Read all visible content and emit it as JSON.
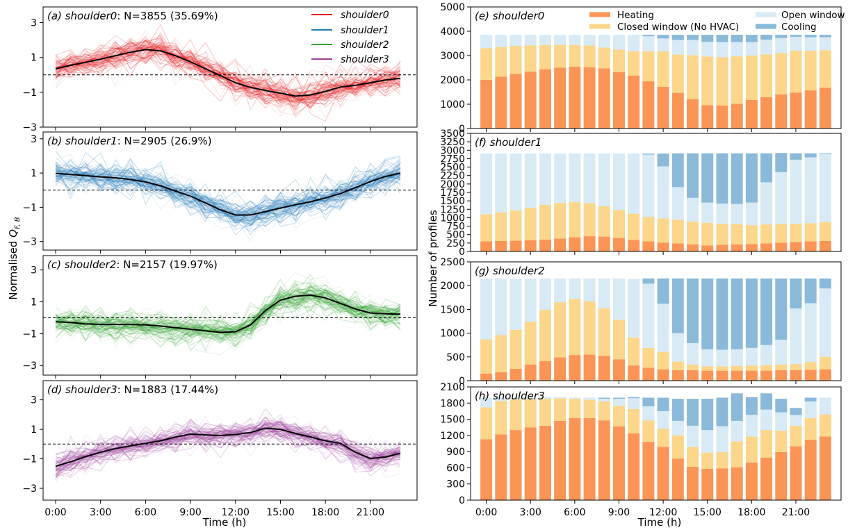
{
  "figure": {
    "left_ylabel": "Normalised",
    "left_ylabel_symbol": "Q",
    "left_ylabel_sub": "F, B",
    "left_xlabel": "Time (h)",
    "right_ylabel": "Number of profiles",
    "right_xlabel": "Time (h)"
  },
  "left_legend": [
    {
      "label": "shoulder0",
      "color": "#e41a1c"
    },
    {
      "label": "shoulder1",
      "color": "#1f77b4"
    },
    {
      "label": "shoulder2",
      "color": "#2ca02c"
    },
    {
      "label": "shoulder3",
      "color": "#9b409b"
    }
  ],
  "right_legend": [
    {
      "label": "Heating",
      "color": "#fa9556"
    },
    {
      "label": "Open window",
      "color": "#d8eaf6"
    },
    {
      "label": "Closed window (No HVAC)",
      "color": "#fcd68a"
    },
    {
      "label": "Cooling",
      "color": "#8ab9d9"
    }
  ],
  "chart_data": [
    {
      "type": "line",
      "panel": "a",
      "title_label": "(a) shoulder0",
      "title_stats": ": N=3855 (35.69%)",
      "color": "#e41a1c",
      "x": [
        "0:00",
        "1:00",
        "2:00",
        "3:00",
        "4:00",
        "5:00",
        "6:00",
        "7:00",
        "8:00",
        "9:00",
        "10:00",
        "11:00",
        "12:00",
        "13:00",
        "14:00",
        "15:00",
        "16:00",
        "17:00",
        "18:00",
        "19:00",
        "20:00",
        "21:00",
        "22:00",
        "23:00"
      ],
      "y": [
        0.35,
        0.55,
        0.72,
        0.9,
        1.1,
        1.3,
        1.45,
        1.38,
        1.1,
        0.75,
        0.35,
        -0.05,
        -0.45,
        -0.72,
        -0.9,
        -1.05,
        -1.22,
        -1.15,
        -0.95,
        -0.7,
        -0.6,
        -0.45,
        -0.3,
        -0.2
      ],
      "ylim": [
        -3,
        3.9
      ],
      "yticks": [
        -3,
        -1,
        1,
        3
      ],
      "baseline": 0
    },
    {
      "type": "line",
      "panel": "b",
      "title_label": "(b) shoulder1",
      "title_stats": ": N=2905 (26.9%)",
      "color": "#1f77b4",
      "x": [
        "0:00",
        "1:00",
        "2:00",
        "3:00",
        "4:00",
        "5:00",
        "6:00",
        "7:00",
        "8:00",
        "9:00",
        "10:00",
        "11:00",
        "12:00",
        "13:00",
        "14:00",
        "15:00",
        "16:00",
        "17:00",
        "18:00",
        "19:00",
        "20:00",
        "21:00",
        "22:00",
        "23:00"
      ],
      "y": [
        0.98,
        0.92,
        0.85,
        0.78,
        0.72,
        0.62,
        0.48,
        0.25,
        -0.05,
        -0.35,
        -0.75,
        -1.15,
        -1.45,
        -1.45,
        -1.25,
        -1.05,
        -0.85,
        -0.68,
        -0.45,
        -0.2,
        0.15,
        0.5,
        0.8,
        1.0
      ],
      "ylim": [
        -3.5,
        3.4
      ],
      "yticks": [
        -3,
        -1,
        1,
        3
      ],
      "baseline": 0
    },
    {
      "type": "line",
      "panel": "c",
      "title_label": "(c) shoulder2",
      "title_stats": ": N=2157 (19.97%)",
      "color": "#2ca02c",
      "x": [
        "0:00",
        "1:00",
        "2:00",
        "3:00",
        "4:00",
        "5:00",
        "6:00",
        "7:00",
        "8:00",
        "9:00",
        "10:00",
        "11:00",
        "12:00",
        "13:00",
        "14:00",
        "15:00",
        "16:00",
        "17:00",
        "18:00",
        "19:00",
        "20:00",
        "21:00",
        "22:00",
        "23:00"
      ],
      "y": [
        -0.25,
        -0.3,
        -0.38,
        -0.42,
        -0.42,
        -0.42,
        -0.45,
        -0.52,
        -0.62,
        -0.72,
        -0.82,
        -0.92,
        -0.88,
        -0.45,
        0.45,
        1.1,
        1.35,
        1.42,
        1.25,
        0.9,
        0.55,
        0.3,
        0.25,
        0.22
      ],
      "ylim": [
        -3.6,
        3.9
      ],
      "yticks": [
        -3,
        -1,
        1,
        3
      ],
      "baseline": 0
    },
    {
      "type": "line",
      "panel": "d",
      "title_label": "(d) shoulder3",
      "title_stats": ": N=1883 (17.44%)",
      "color": "#9b409b",
      "x": [
        "0:00",
        "1:00",
        "2:00",
        "3:00",
        "4:00",
        "5:00",
        "6:00",
        "7:00",
        "8:00",
        "9:00",
        "10:00",
        "11:00",
        "12:00",
        "13:00",
        "14:00",
        "15:00",
        "16:00",
        "17:00",
        "18:00",
        "19:00",
        "20:00",
        "21:00",
        "22:00",
        "23:00"
      ],
      "y": [
        -1.5,
        -1.2,
        -0.85,
        -0.55,
        -0.3,
        -0.12,
        0.05,
        0.22,
        0.48,
        0.68,
        0.62,
        0.58,
        0.65,
        0.78,
        1.08,
        1.0,
        0.72,
        0.48,
        0.22,
        0.05,
        -0.55,
        -0.98,
        -0.88,
        -0.62
      ],
      "ylim": [
        -3.8,
        4.3
      ],
      "yticks": [
        -3,
        -1,
        1,
        3
      ],
      "baseline": 0
    },
    {
      "type": "bar",
      "stacked": true,
      "panel": "e",
      "title": "(e) shoulder0",
      "categories": [
        "0:00",
        "1:00",
        "2:00",
        "3:00",
        "4:00",
        "5:00",
        "6:00",
        "7:00",
        "8:00",
        "9:00",
        "10:00",
        "11:00",
        "12:00",
        "13:00",
        "14:00",
        "15:00",
        "16:00",
        "17:00",
        "18:00",
        "19:00",
        "20:00",
        "21:00",
        "22:00",
        "23:00"
      ],
      "series": [
        {
          "name": "Heating",
          "values": [
            2000,
            2130,
            2250,
            2340,
            2440,
            2500,
            2540,
            2520,
            2470,
            2320,
            2180,
            1940,
            1720,
            1470,
            1200,
            960,
            950,
            1020,
            1180,
            1290,
            1400,
            1480,
            1570,
            1680
          ]
        },
        {
          "name": "Closed window (No HVAC)",
          "values": [
            1300,
            1220,
            1150,
            1080,
            990,
            940,
            900,
            900,
            860,
            930,
            1000,
            1240,
            1450,
            1570,
            1820,
            2000,
            1980,
            1950,
            1820,
            1760,
            1700,
            1720,
            1630,
            1540
          ]
        },
        {
          "name": "Open window",
          "values": [
            555,
            505,
            455,
            435,
            425,
            415,
            415,
            435,
            525,
            605,
            675,
            615,
            535,
            605,
            625,
            605,
            625,
            585,
            555,
            605,
            625,
            575,
            555,
            535
          ]
        },
        {
          "name": "Cooling",
          "values": [
            0,
            0,
            0,
            0,
            0,
            0,
            0,
            0,
            0,
            0,
            0,
            60,
            150,
            210,
            210,
            290,
            300,
            300,
            300,
            200,
            130,
            80,
            100,
            100
          ]
        }
      ],
      "ylim": [
        0,
        5000
      ],
      "yticks": [
        0,
        1000,
        2000,
        3000,
        4000,
        5000
      ]
    },
    {
      "type": "bar",
      "stacked": true,
      "panel": "f",
      "title": "(f) shoulder1",
      "categories": [
        "0:00",
        "1:00",
        "2:00",
        "3:00",
        "4:00",
        "5:00",
        "6:00",
        "7:00",
        "8:00",
        "9:00",
        "10:00",
        "11:00",
        "12:00",
        "13:00",
        "14:00",
        "15:00",
        "16:00",
        "17:00",
        "18:00",
        "19:00",
        "20:00",
        "21:00",
        "22:00",
        "23:00"
      ],
      "series": [
        {
          "name": "Heating",
          "values": [
            300,
            310,
            320,
            330,
            350,
            380,
            420,
            450,
            440,
            400,
            340,
            300,
            260,
            240,
            210,
            180,
            200,
            210,
            220,
            240,
            260,
            280,
            300,
            310
          ]
        },
        {
          "name": "Closed window (No HVAC)",
          "values": [
            800,
            850,
            900,
            960,
            1030,
            1060,
            1040,
            980,
            900,
            830,
            780,
            720,
            720,
            700,
            680,
            670,
            620,
            600,
            560,
            560,
            560,
            540,
            540,
            560
          ]
        },
        {
          "name": "Open window",
          "values": [
            1800,
            1740,
            1680,
            1610,
            1520,
            1460,
            1440,
            1470,
            1560,
            1670,
            1780,
            1850,
            1540,
            970,
            700,
            600,
            600,
            600,
            670,
            1250,
            1530,
            1900,
            1950,
            2020
          ]
        },
        {
          "name": "Cooling",
          "values": [
            0,
            0,
            0,
            0,
            0,
            0,
            0,
            0,
            0,
            0,
            0,
            30,
            380,
            1000,
            1320,
            1460,
            1490,
            1500,
            1460,
            860,
            570,
            190,
            120,
            20
          ]
        }
      ],
      "ylim": [
        0,
        3500
      ],
      "yticks": [
        0,
        250,
        500,
        750,
        1000,
        1250,
        1500,
        1750,
        2000,
        2250,
        2500,
        2750,
        3000,
        3250,
        3500
      ]
    },
    {
      "type": "bar",
      "stacked": true,
      "panel": "g",
      "title": "(g) shoulder2",
      "categories": [
        "0:00",
        "1:00",
        "2:00",
        "3:00",
        "4:00",
        "5:00",
        "6:00",
        "7:00",
        "8:00",
        "9:00",
        "10:00",
        "11:00",
        "12:00",
        "13:00",
        "14:00",
        "15:00",
        "16:00",
        "17:00",
        "18:00",
        "19:00",
        "20:00",
        "21:00",
        "22:00",
        "23:00"
      ],
      "series": [
        {
          "name": "Heating",
          "values": [
            150,
            180,
            250,
            340,
            410,
            490,
            540,
            550,
            520,
            450,
            320,
            270,
            240,
            220,
            220,
            210,
            210,
            210,
            210,
            210,
            220,
            220,
            230,
            240
          ]
        },
        {
          "name": "Closed window (No HVAC)",
          "values": [
            720,
            780,
            820,
            900,
            1080,
            1160,
            1180,
            1120,
            1000,
            830,
            590,
            420,
            370,
            180,
            120,
            90,
            90,
            100,
            110,
            120,
            120,
            130,
            160,
            260
          ]
        },
        {
          "name": "Open window",
          "values": [
            1280,
            1190,
            1080,
            910,
            660,
            500,
            430,
            480,
            630,
            870,
            1230,
            1350,
            1010,
            600,
            450,
            360,
            350,
            350,
            370,
            420,
            520,
            1170,
            1240,
            1440
          ]
        },
        {
          "name": "Cooling",
          "values": [
            0,
            0,
            0,
            0,
            0,
            0,
            0,
            0,
            0,
            0,
            0,
            110,
            530,
            1150,
            1360,
            1490,
            1500,
            1490,
            1460,
            1400,
            1290,
            630,
            520,
            210
          ]
        }
      ],
      "ylim": [
        0,
        2500
      ],
      "yticks": [
        0,
        500,
        1000,
        1500,
        2000,
        2500
      ]
    },
    {
      "type": "bar",
      "stacked": true,
      "panel": "h",
      "title": "(h) shoulder3",
      "categories": [
        "0:00",
        "1:00",
        "2:00",
        "3:00",
        "4:00",
        "5:00",
        "6:00",
        "7:00",
        "8:00",
        "9:00",
        "10:00",
        "11:00",
        "12:00",
        "13:00",
        "14:00",
        "15:00",
        "16:00",
        "17:00",
        "18:00",
        "19:00",
        "20:00",
        "21:00",
        "22:00",
        "23:00"
      ],
      "series": [
        {
          "name": "Heating",
          "values": [
            1130,
            1220,
            1300,
            1350,
            1380,
            1470,
            1520,
            1520,
            1480,
            1370,
            1240,
            1080,
            990,
            770,
            620,
            580,
            590,
            610,
            700,
            790,
            890,
            1000,
            1120,
            1180
          ]
        },
        {
          "name": "Closed window (No HVAC)",
          "values": [
            590,
            620,
            570,
            520,
            500,
            420,
            360,
            340,
            350,
            380,
            450,
            400,
            330,
            430,
            370,
            300,
            300,
            480,
            480,
            510,
            400,
            380,
            400,
            410
          ]
        },
        {
          "name": "Open window",
          "values": [
            180,
            60,
            30,
            30,
            30,
            20,
            20,
            40,
            50,
            130,
            200,
            260,
            330,
            270,
            390,
            420,
            480,
            380,
            400,
            380,
            340,
            200,
            310,
            310
          ]
        },
        {
          "name": "Cooling",
          "values": [
            0,
            0,
            0,
            0,
            0,
            0,
            0,
            0,
            20,
            20,
            20,
            160,
            250,
            410,
            500,
            580,
            530,
            510,
            330,
            300,
            250,
            130,
            70,
            0
          ]
        }
      ],
      "ylim": [
        0,
        2100
      ],
      "yticks": [
        0,
        300,
        600,
        900,
        1200,
        1500,
        1800,
        2100
      ]
    }
  ]
}
